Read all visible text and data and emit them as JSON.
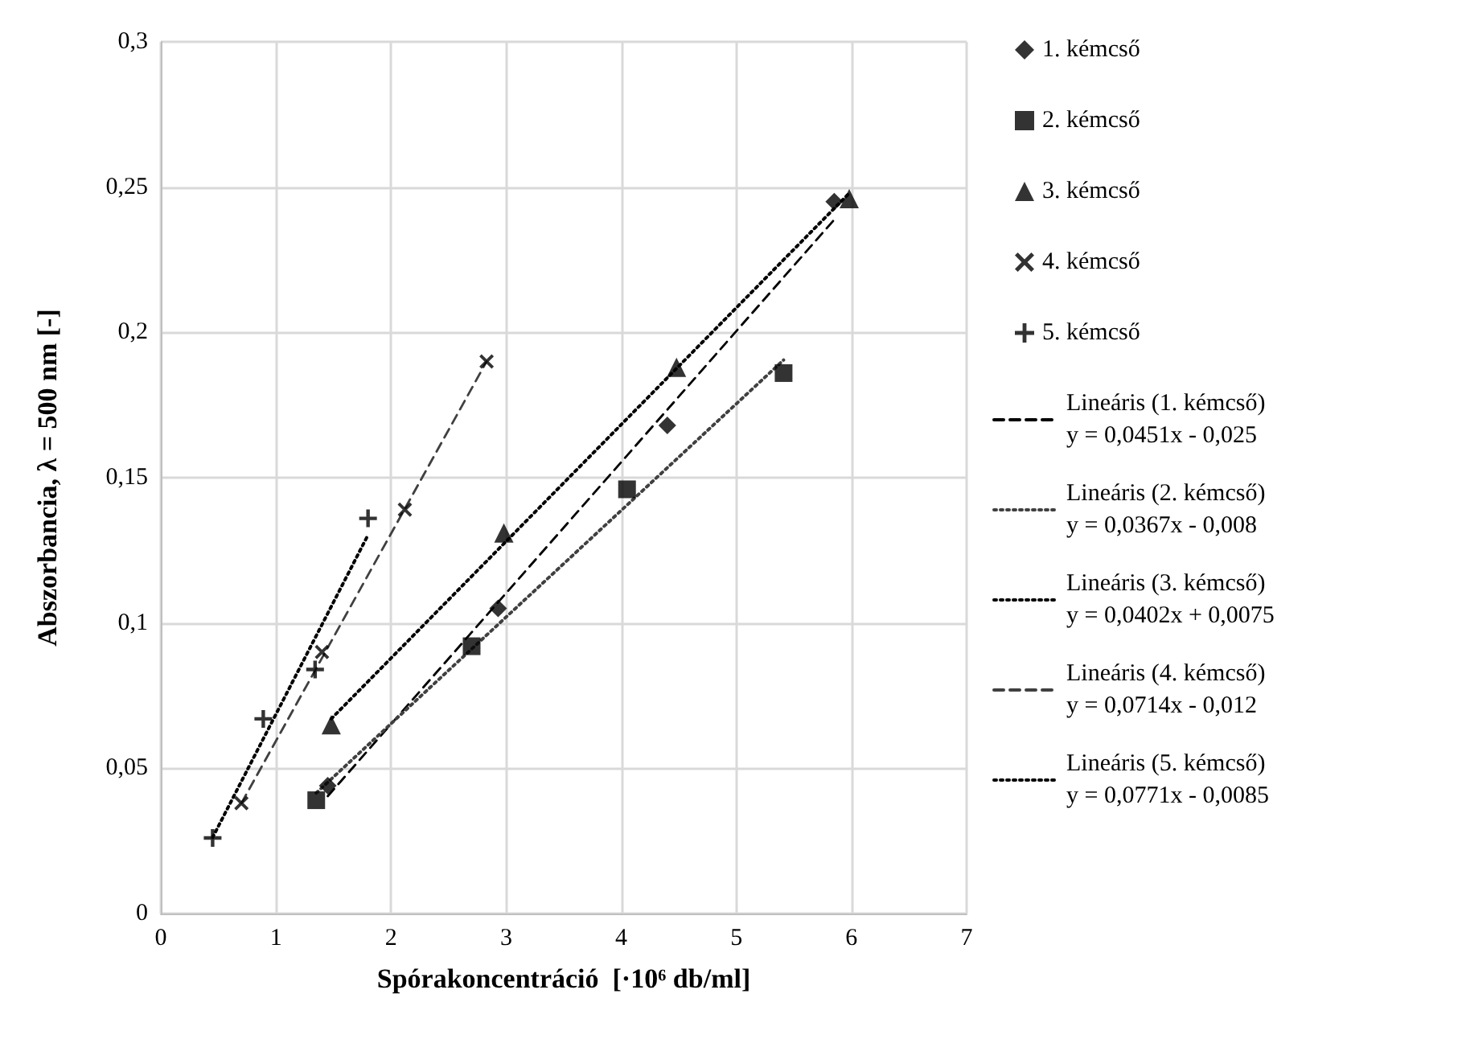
{
  "chart_data": {
    "type": "scatter",
    "xlabel": "Spórakoncentráció  [·10⁶ db/ml]",
    "ylabel": "Abszorbancia, λ = 500 nm [-]",
    "xlim": [
      0,
      7
    ],
    "xticks": [
      0,
      1,
      2,
      3,
      4,
      5,
      6,
      7
    ],
    "ylim": [
      0,
      0.3
    ],
    "yticks": [
      0,
      {
        "value": 0.05,
        "label": "0,05"
      },
      {
        "value": 0.1,
        "label": "0,1"
      },
      {
        "value": 0.15,
        "label": "0,15"
      },
      {
        "value": 0.2,
        "label": "0,2"
      },
      {
        "value": 0.25,
        "label": "0,25"
      },
      {
        "value": 0.3,
        "label": "0,3"
      }
    ],
    "grid": true,
    "legend": "right",
    "series": [
      {
        "name": "1. kémcső",
        "marker": "diamond",
        "color": "#000000",
        "x": [
          1.45,
          2.93,
          4.4,
          5.85
        ],
        "values": [
          0.044,
          0.105,
          0.168,
          0.245
        ]
      },
      {
        "name": "2. kémcső",
        "marker": "square",
        "color": "#000000",
        "x": [
          1.35,
          2.7,
          4.05,
          5.41
        ],
        "values": [
          0.039,
          0.092,
          0.146,
          0.186
        ]
      },
      {
        "name": "3. kémcső",
        "marker": "triangle",
        "color": "#000000",
        "x": [
          1.48,
          2.98,
          4.48,
          5.98
        ],
        "values": [
          0.065,
          0.131,
          0.188,
          0.246
        ]
      },
      {
        "name": "4. kémcső",
        "marker": "x",
        "color": "#000000",
        "x": [
          0.7,
          1.4,
          2.12,
          2.83
        ],
        "values": [
          0.038,
          0.09,
          0.139,
          0.19
        ]
      },
      {
        "name": "5. kémcső",
        "marker": "cross",
        "color": "#000000",
        "x": [
          0.45,
          0.89,
          1.34,
          1.8
        ],
        "values": [
          0.026,
          0.067,
          0.084,
          0.136
        ]
      },
      {
        "name": "Lineáris (1. kémcső)\ny = 0,0451x - 0,025",
        "type": "line",
        "marker": "none",
        "line_style": "dashed",
        "color": "#000000",
        "x": [
          1.45,
          5.85
        ],
        "values": [
          0.0404,
          0.2388
        ]
      },
      {
        "name": "Lineáris (2. kémcső)\ny = 0,0367x - 0,008",
        "type": "line",
        "marker": "none",
        "line_style": "dotted",
        "color": "#404040",
        "x": [
          1.35,
          5.41
        ],
        "values": [
          0.0415,
          0.1905
        ]
      },
      {
        "name": "Lineáris (3. kémcső)\ny = 0,0402x + 0,0075",
        "type": "line",
        "marker": "none",
        "line_style": "dotted",
        "color": "#000000",
        "x": [
          1.48,
          5.98
        ],
        "values": [
          0.067,
          0.2479
        ]
      },
      {
        "name": "Lineáris (4. kémcső)\ny = 0,0714x - 0,012",
        "type": "line",
        "marker": "none",
        "line_style": "dashed",
        "color": "#404040",
        "x": [
          0.7,
          2.83
        ],
        "values": [
          0.038,
          0.19
        ]
      },
      {
        "name": "Lineáris (5. kémcső)\ny = 0,0771x - 0,0085",
        "type": "line",
        "marker": "none",
        "line_style": "dotted",
        "color": "#000000",
        "x": [
          0.45,
          1.8
        ],
        "values": [
          0.0262,
          0.1303
        ]
      }
    ]
  }
}
